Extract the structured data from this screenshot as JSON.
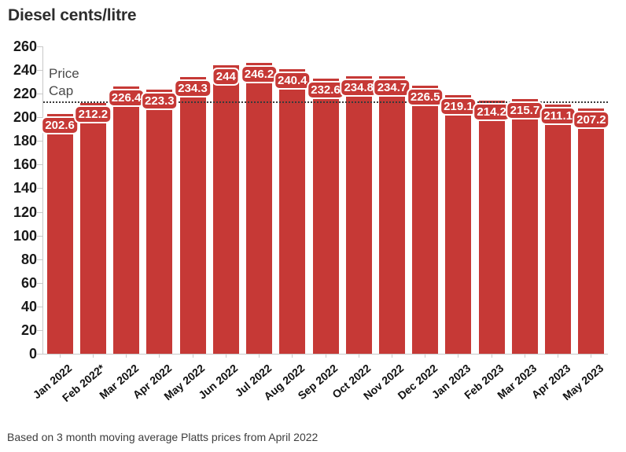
{
  "colors": {
    "bar": "#c63936",
    "bar_label_text": "#ffffff",
    "cap_line": "#3a3a3a",
    "cap_text": "#4a4a4a",
    "axis": "#c8c8c8",
    "title_text": "#2d2d2d",
    "y_tick_text": "#1a1a1a",
    "x_tick_text": "#111111",
    "note_text": "#3d3d3d"
  },
  "chart_data": {
    "type": "bar",
    "title": "Diesel cents/litre",
    "categories": [
      "Jan 2022",
      "Feb 2022*",
      "Mar 2022",
      "Apr 2022",
      "May 2022",
      "Jun 2022",
      "Jul 2022",
      "Aug 2022",
      "Sep 2022",
      "Oct 2022",
      "Nov 2022",
      "Dec 2022",
      "Jan 2023",
      "Feb 2023",
      "Mar 2023",
      "Apr 2023",
      "May 2023"
    ],
    "values": [
      202.6,
      212.2,
      226.4,
      223.3,
      234.3,
      244,
      246.2,
      240.4,
      232.6,
      234.8,
      234.7,
      226.5,
      219.1,
      214.2,
      215.7,
      211.1,
      207.2
    ],
    "price_cap": {
      "label": "Price Cap",
      "value": 212
    },
    "yticks": [
      0,
      20,
      40,
      60,
      80,
      100,
      120,
      140,
      160,
      180,
      200,
      220,
      240,
      260
    ],
    "ylim": [
      0,
      260
    ],
    "xlabel": "",
    "ylabel": "",
    "grid": false,
    "legend": false,
    "bar_labels_shown": true,
    "footnote": "Based on 3 month moving average Platts prices from April 2022"
  }
}
